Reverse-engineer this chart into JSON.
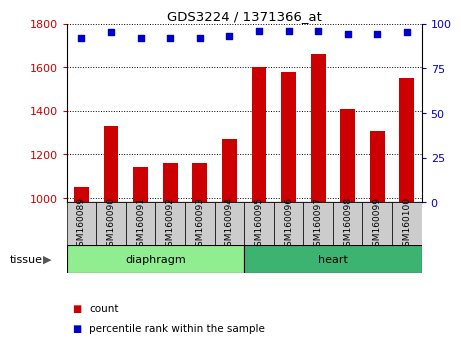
{
  "title": "GDS3224 / 1371366_at",
  "samples": [
    "GSM160089",
    "GSM160090",
    "GSM160091",
    "GSM160092",
    "GSM160093",
    "GSM160094",
    "GSM160095",
    "GSM160096",
    "GSM160097",
    "GSM160098",
    "GSM160099",
    "GSM160100"
  ],
  "counts": [
    1050,
    1330,
    1140,
    1160,
    1160,
    1270,
    1600,
    1580,
    1660,
    1410,
    1305,
    1550
  ],
  "percentiles": [
    92,
    95,
    92,
    92,
    92,
    93,
    96,
    96,
    96,
    94,
    94,
    95
  ],
  "ylim_left": [
    980,
    1800
  ],
  "ylim_right": [
    0,
    100
  ],
  "yticks_left": [
    1000,
    1200,
    1400,
    1600,
    1800
  ],
  "yticks_right": [
    0,
    25,
    50,
    75,
    100
  ],
  "groups": [
    {
      "label": "diaphragm",
      "start": 0,
      "end": 6,
      "color": "#90EE90"
    },
    {
      "label": "heart",
      "start": 6,
      "end": 12,
      "color": "#3CB371"
    }
  ],
  "bar_color": "#CC0000",
  "dot_color": "#0000CC",
  "bar_width": 0.5,
  "ylabel_left_color": "#CC0000",
  "ylabel_right_color": "#0000CC",
  "grid_color": "black",
  "plot_bg": "#FFFFFF",
  "xtick_bg": "#CCCCCC",
  "legend_items": [
    {
      "label": "count",
      "color": "#CC0000"
    },
    {
      "label": "percentile rank within the sample",
      "color": "#0000CC"
    }
  ],
  "tissue_label": "tissue"
}
